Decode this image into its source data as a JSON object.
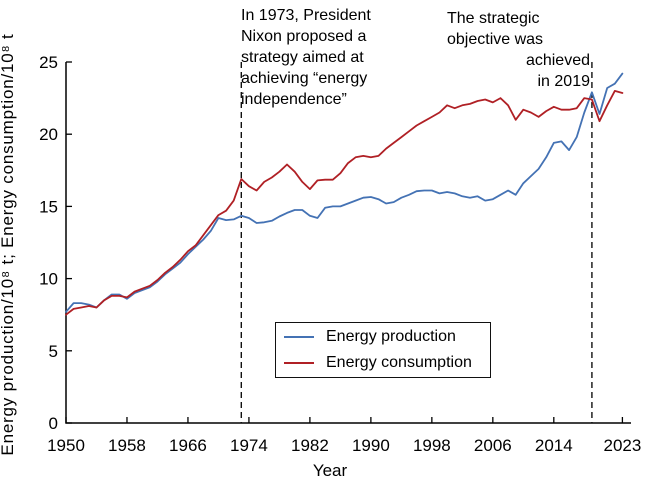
{
  "figure": {
    "background": "#ffffff",
    "axis_color": "#000000",
    "dashed_guide_color": "#111111"
  },
  "chart_data": {
    "type": "line",
    "title": "",
    "xlabel": "Year",
    "ylabel": "Energy production/10⁸ t; Energy consumption/10⁸ t",
    "xlim": [
      1950,
      2024
    ],
    "ylim": [
      0,
      25
    ],
    "x_ticks": [
      1950,
      1958,
      1966,
      1974,
      1982,
      1990,
      1998,
      2006,
      2014,
      2023
    ],
    "y_ticks": [
      0,
      5,
      10,
      15,
      20,
      25
    ],
    "grid": false,
    "legend_position": "inside lower-center",
    "x": [
      1950,
      1951,
      1952,
      1953,
      1954,
      1955,
      1956,
      1957,
      1958,
      1959,
      1960,
      1961,
      1962,
      1963,
      1964,
      1965,
      1966,
      1967,
      1968,
      1969,
      1970,
      1971,
      1972,
      1973,
      1974,
      1975,
      1976,
      1977,
      1978,
      1979,
      1980,
      1981,
      1982,
      1983,
      1984,
      1985,
      1986,
      1987,
      1988,
      1989,
      1990,
      1991,
      1992,
      1993,
      1994,
      1995,
      1996,
      1997,
      1998,
      1999,
      2000,
      2001,
      2002,
      2003,
      2004,
      2005,
      2006,
      2007,
      2008,
      2009,
      2010,
      2011,
      2012,
      2013,
      2014,
      2015,
      2016,
      2017,
      2018,
      2019,
      2020,
      2021,
      2022,
      2023
    ],
    "series": [
      {
        "name": "Energy production",
        "color": "#4472b4",
        "values": [
          7.7,
          8.3,
          8.3,
          8.2,
          8.0,
          8.5,
          8.9,
          8.9,
          8.6,
          9.0,
          9.2,
          9.4,
          9.8,
          10.3,
          10.7,
          11.1,
          11.7,
          12.2,
          12.7,
          13.3,
          14.2,
          14.05,
          14.1,
          14.35,
          14.2,
          13.85,
          13.9,
          14.0,
          14.3,
          14.55,
          14.75,
          14.75,
          14.35,
          14.2,
          14.9,
          15.0,
          15.0,
          15.2,
          15.4,
          15.6,
          15.65,
          15.5,
          15.2,
          15.3,
          15.6,
          15.8,
          16.05,
          16.1,
          16.1,
          15.9,
          16.0,
          15.9,
          15.7,
          15.6,
          15.7,
          15.4,
          15.5,
          15.8,
          16.1,
          15.8,
          16.6,
          17.1,
          17.6,
          18.4,
          19.4,
          19.5,
          18.9,
          19.8,
          21.5,
          22.9,
          21.4,
          23.2,
          23.5,
          24.2
        ]
      },
      {
        "name": "Energy consumption",
        "color": "#b02025",
        "values": [
          7.5,
          7.9,
          8.0,
          8.1,
          8.0,
          8.5,
          8.8,
          8.8,
          8.7,
          9.1,
          9.3,
          9.5,
          9.9,
          10.4,
          10.8,
          11.3,
          11.9,
          12.3,
          13.0,
          13.7,
          14.4,
          14.7,
          15.4,
          16.9,
          16.4,
          16.1,
          16.7,
          17.0,
          17.4,
          17.9,
          17.4,
          16.7,
          16.2,
          16.8,
          16.85,
          16.85,
          17.3,
          18.0,
          18.4,
          18.5,
          18.4,
          18.5,
          19.0,
          19.4,
          19.8,
          20.2,
          20.6,
          20.9,
          21.2,
          21.5,
          22.0,
          21.8,
          22.0,
          22.1,
          22.3,
          22.4,
          22.2,
          22.5,
          22.0,
          21.0,
          21.7,
          21.5,
          21.2,
          21.6,
          21.9,
          21.7,
          21.7,
          21.8,
          22.5,
          22.4,
          20.9,
          22.0,
          23.0,
          22.85
        ]
      }
    ],
    "annotations": [
      {
        "year": 1973,
        "lines": [
          "In 1973, President",
          "Nixon proposed a",
          "strategy aimed at",
          "achieving “energy",
          "independence”"
        ]
      },
      {
        "year": 2019,
        "lines": [
          "The strategic",
          "objective was",
          "achieved",
          "in 2019"
        ]
      }
    ]
  }
}
